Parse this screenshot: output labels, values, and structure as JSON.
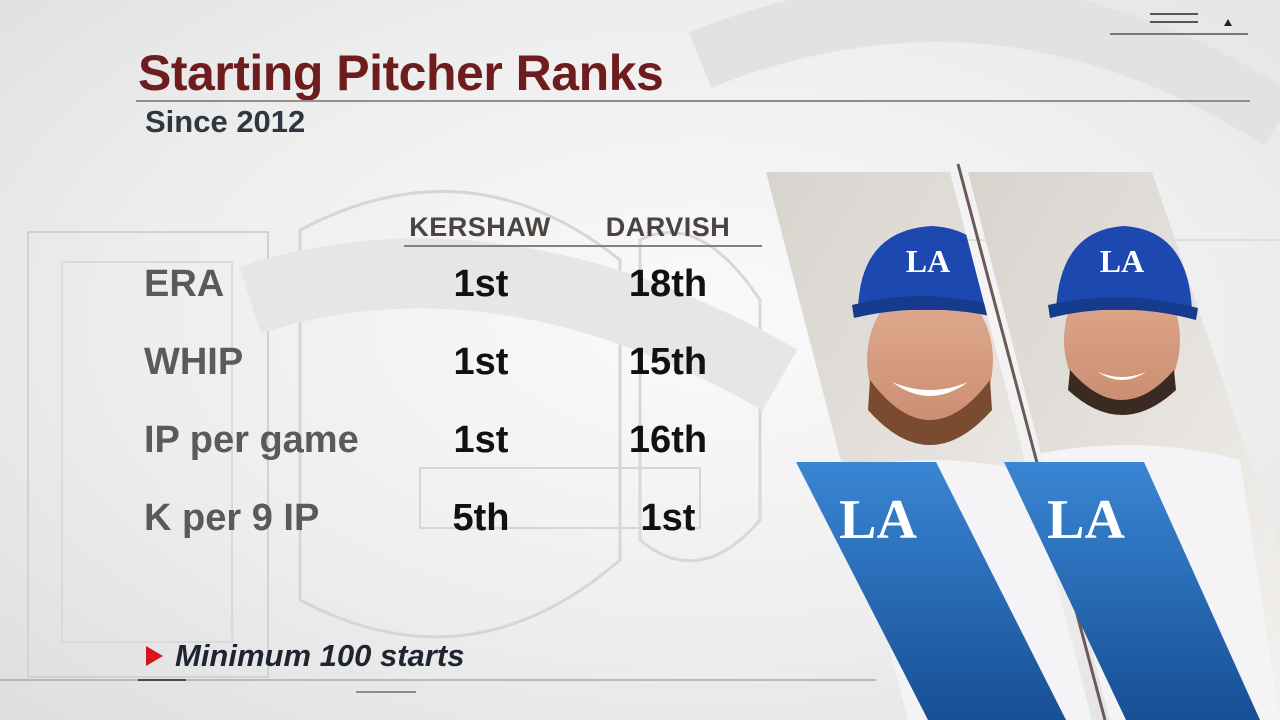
{
  "header": {
    "title": "Starting Pitcher Ranks",
    "subtitle": "Since 2012"
  },
  "table": {
    "columns": [
      "KERSHAW",
      "DARVISH"
    ],
    "rows": [
      {
        "label": "ERA",
        "values": [
          "1st",
          "18th"
        ]
      },
      {
        "label": "WHIP",
        "values": [
          "1st",
          "15th"
        ]
      },
      {
        "label": "IP per game",
        "values": [
          "1st",
          "16th"
        ]
      },
      {
        "label": "K per 9 IP",
        "values": [
          "5th",
          "1st"
        ]
      }
    ]
  },
  "footnote": {
    "text": "Minimum 100 starts"
  },
  "players": [
    {
      "team_logo": "LA",
      "cap_logo": "LA"
    },
    {
      "team_logo": "LA",
      "cap_logo": "LA"
    }
  ],
  "colors": {
    "title": "#6e1d1f",
    "dodger_blue": "#1f66b5",
    "dodger_blue_light": "#3a86d4",
    "accent_red": "#d8141c",
    "rule": "#9a8a88"
  },
  "icons": {
    "footnote_marker": "red-triangle-icon",
    "team_logo": "dodgers-la-logo"
  }
}
